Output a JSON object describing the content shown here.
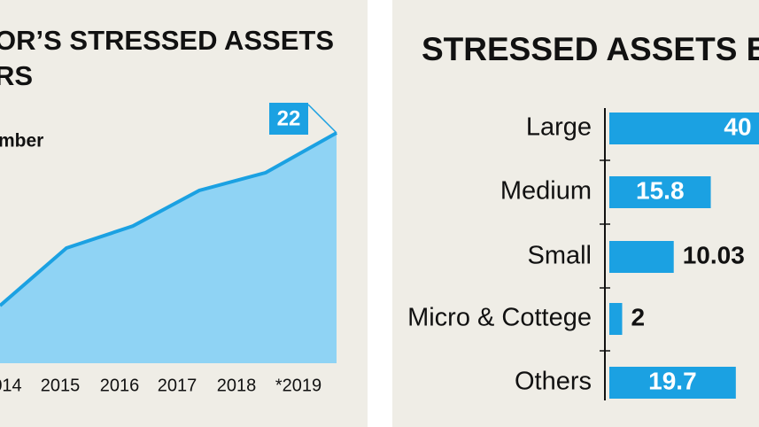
{
  "chart_data": [
    {
      "type": "area",
      "title_lines": [
        "OR’S STRESSED ASSETS",
        "RS"
      ],
      "subtitle": "mber",
      "categories": [
        "014",
        "2015",
        "2016",
        "2017",
        "2018",
        "*2019"
      ],
      "values": [
        5.5,
        11,
        13.1,
        16.5,
        18.2,
        22
      ],
      "annotation": "22",
      "color": "#1ba1e2",
      "fill": "#8fd3f4"
    },
    {
      "type": "hbar",
      "title": "STRESSED ASSETS BY",
      "categories": [
        "Large",
        "Medium",
        "Small",
        "Micro & Cottege",
        "Others"
      ],
      "values": [
        40,
        15.8,
        10.03,
        2,
        19.7
      ],
      "color": "#1ba1e2"
    }
  ]
}
